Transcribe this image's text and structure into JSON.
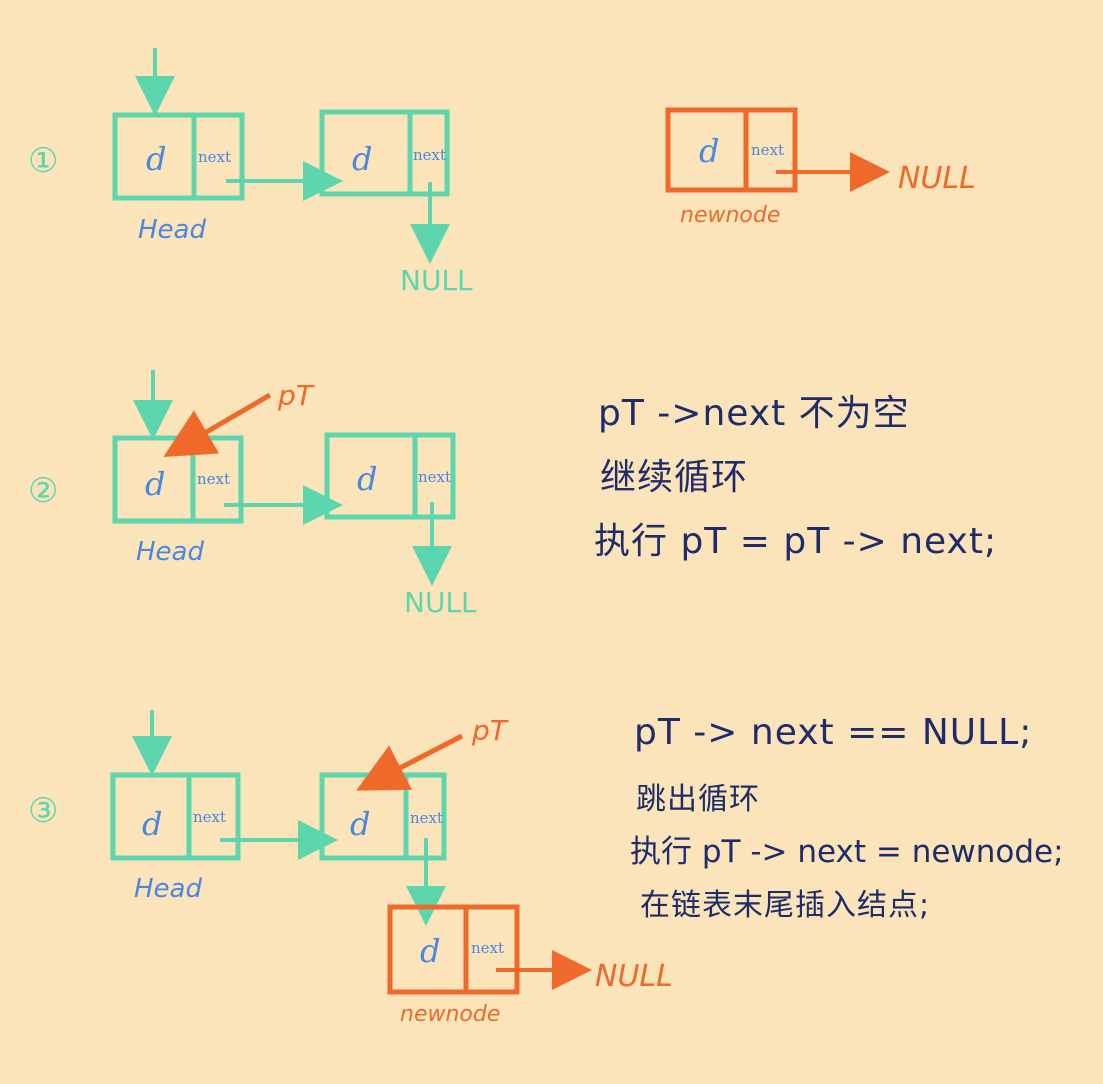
{
  "colors": {
    "background": "#fbe3ba",
    "list": "#5ed6ad",
    "label": "#4a88e0",
    "accent": "#ef6a2a",
    "ink": "#1f2c6a"
  },
  "labels": {
    "data_field": "d",
    "next_field": "next",
    "head": "Head",
    "null": "NULL",
    "newnode": "newnode",
    "pointer": "pT"
  },
  "steps": [
    {
      "number": "①",
      "notes": []
    },
    {
      "number": "②",
      "notes": [
        "pT ->next 不为空",
        "继续循环",
        "执行 pT = pT -> next;"
      ]
    },
    {
      "number": "③",
      "notes": [
        "pT -> next == NULL;",
        "跳出循环",
        "执行 pT -> next = newnode;",
        "在链表末尾插入结点;"
      ]
    }
  ]
}
